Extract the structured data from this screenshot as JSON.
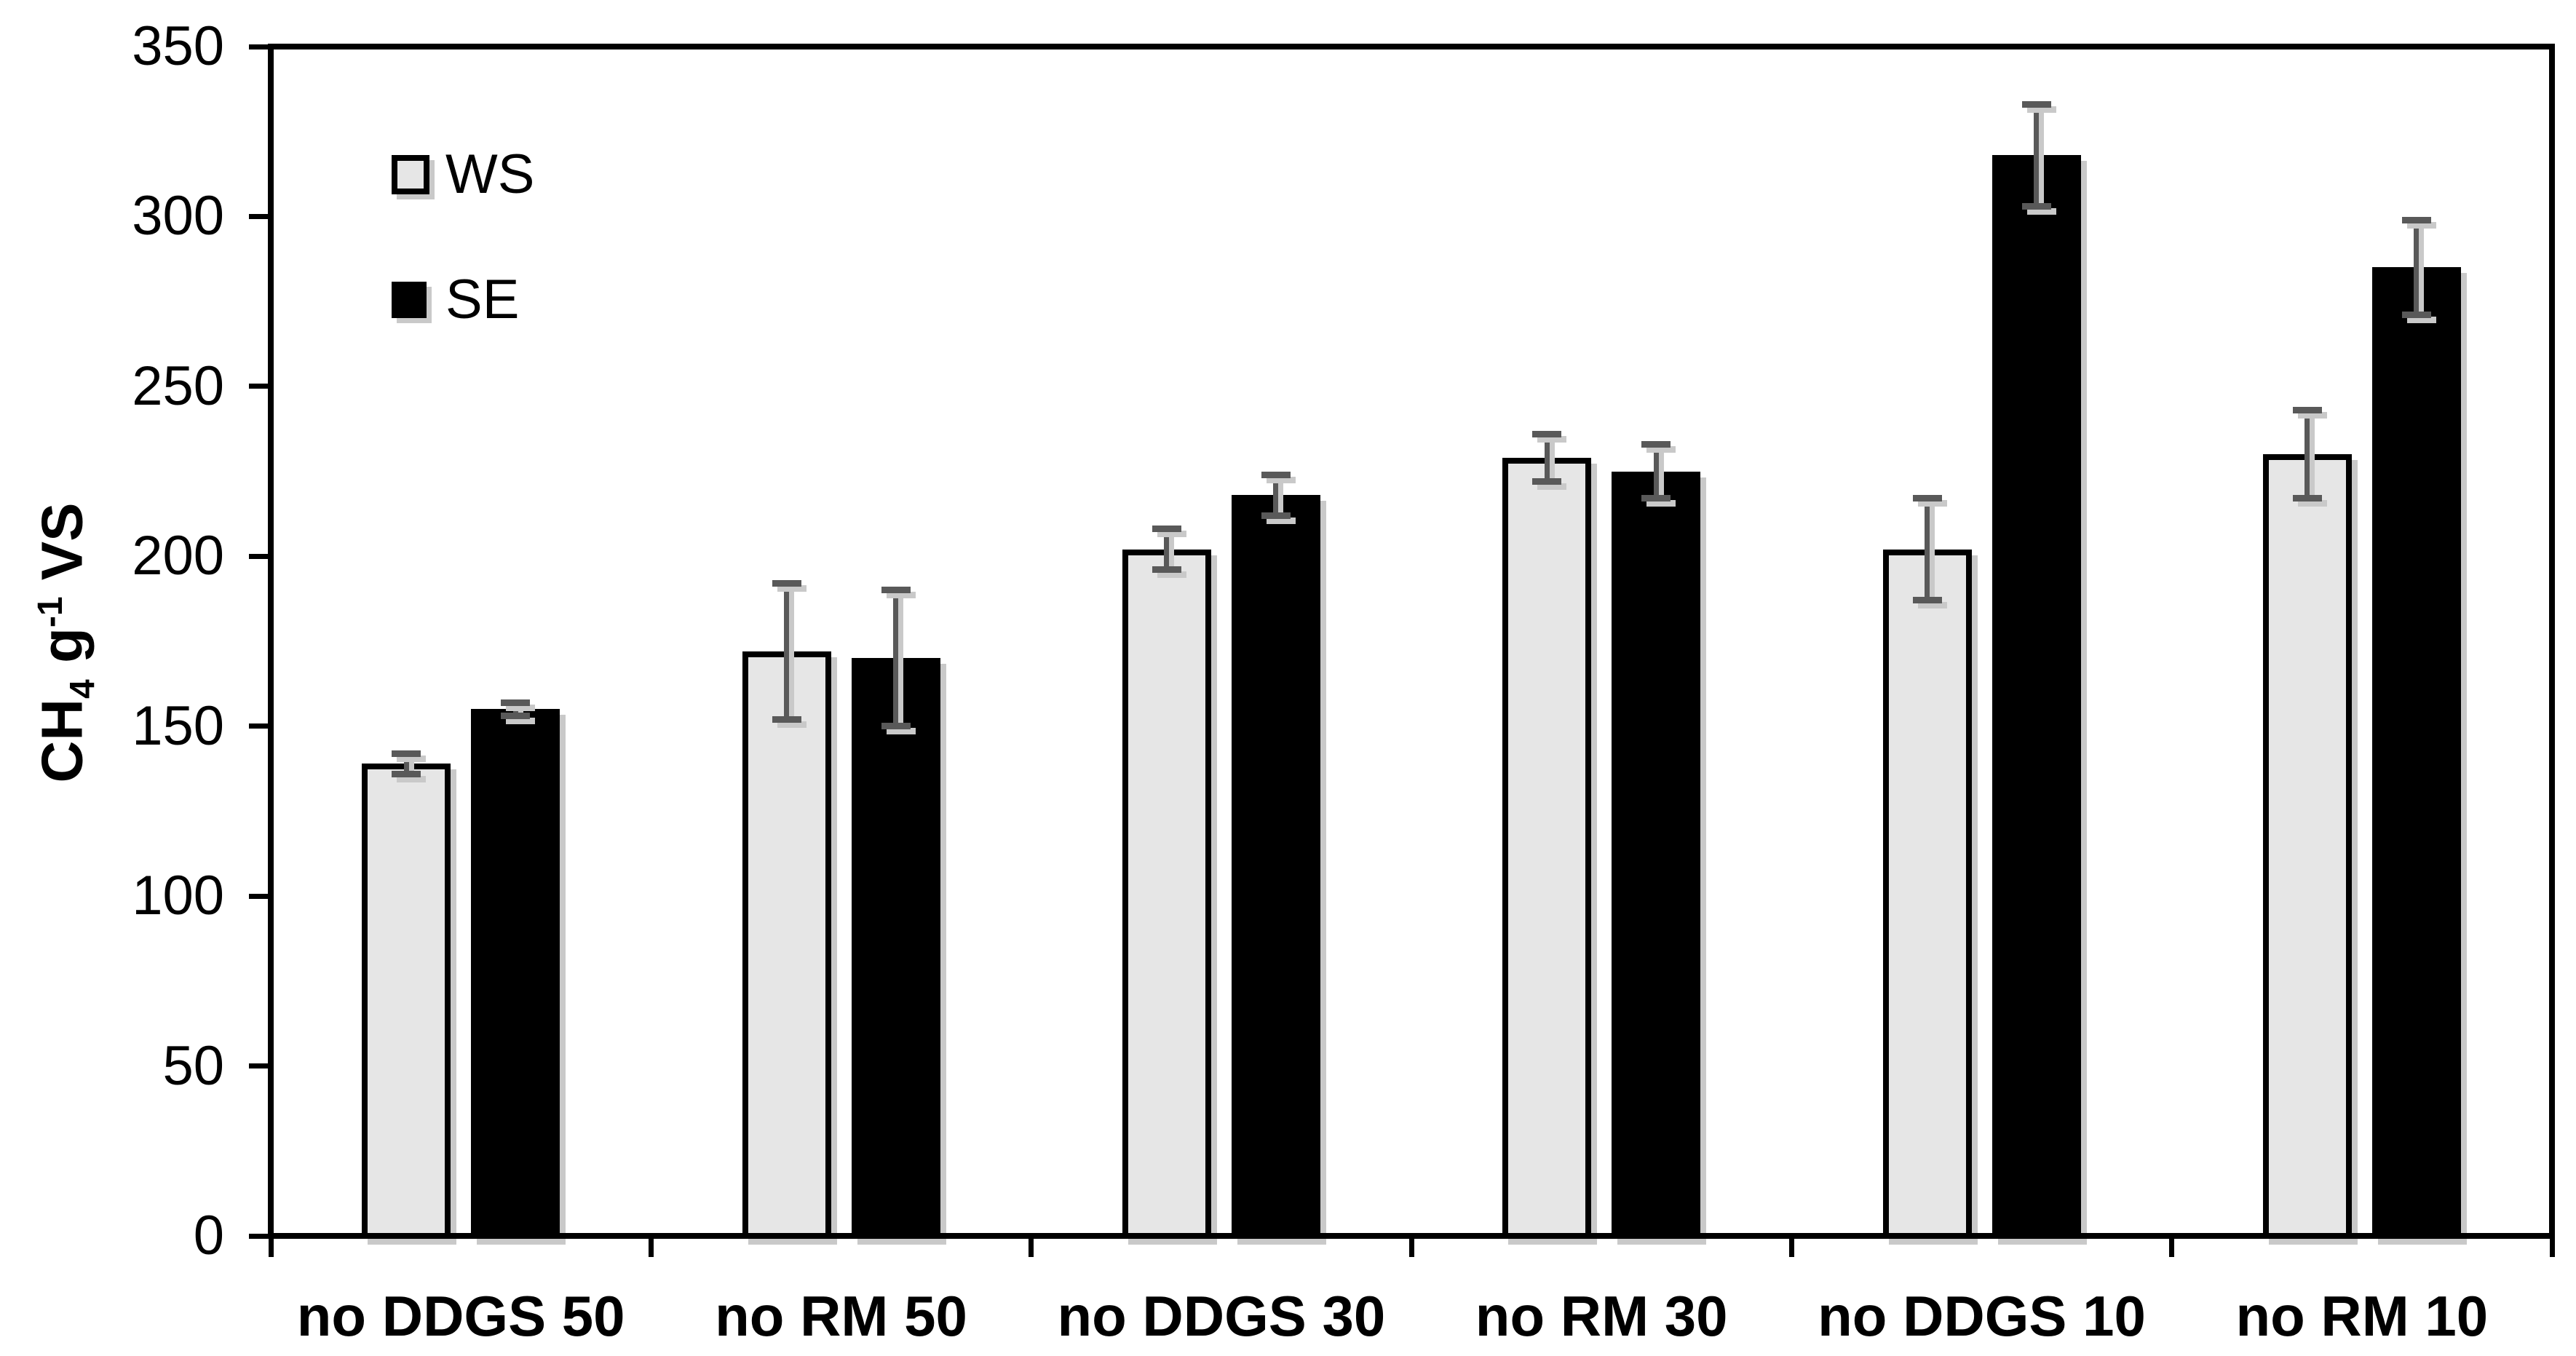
{
  "chart_data": {
    "type": "bar",
    "title": "",
    "ylabel": "CH4 g-1 VS",
    "ylabel_rich": {
      "base1": "CH",
      "sub": "4",
      "base2": " g",
      "sup": "-1",
      "base3": " VS"
    },
    "xlabel": "",
    "categories": [
      "no DDGS 50",
      "no RM 50",
      "no DDGS 30",
      "no RM 30",
      "no DDGS 10",
      "no RM 10"
    ],
    "series": [
      {
        "name": "WS",
        "fill": "#e6e6e6",
        "border": "#000000",
        "values": [
          139,
          172,
          202,
          229,
          202,
          230
        ],
        "errors": [
          3,
          20,
          6,
          7,
          15,
          13
        ]
      },
      {
        "name": "SE",
        "fill": "#000000",
        "border": "#000000",
        "values": [
          155,
          170,
          218,
          225,
          318,
          285
        ],
        "errors": [
          2,
          20,
          6,
          8,
          15,
          14
        ]
      }
    ],
    "ylim": [
      0,
      350
    ],
    "yticks": [
      0,
      50,
      100,
      150,
      200,
      250,
      300,
      350
    ],
    "ytick_labels": [
      "0",
      "50",
      "100",
      "150",
      "200",
      "250",
      "300",
      "350"
    ],
    "grid": false,
    "legend_position": "inside-top-left",
    "error_bar_color": "#595959",
    "axis_color": "#000000",
    "shadow_color": "#c9c9c9"
  }
}
